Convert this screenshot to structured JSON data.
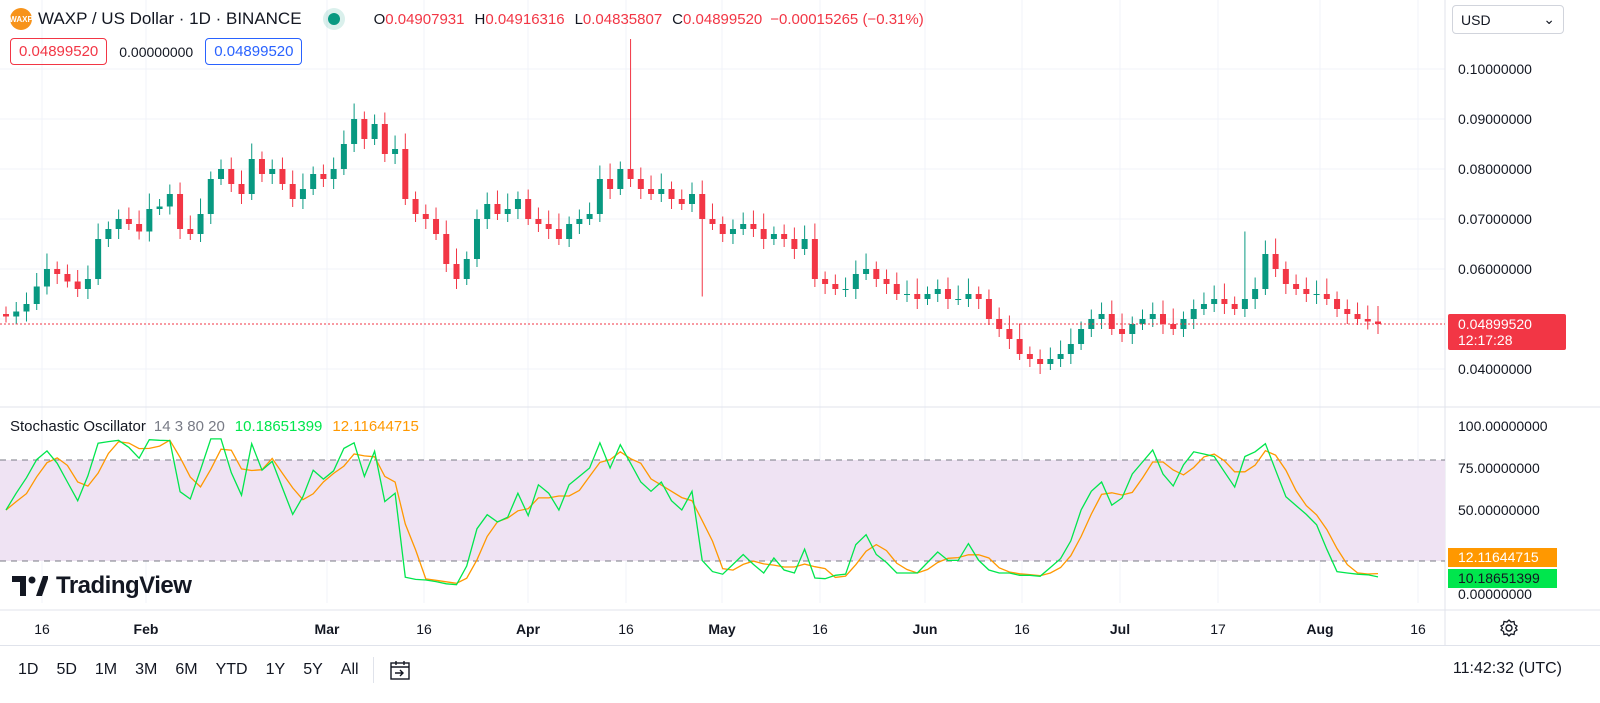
{
  "symbol": {
    "logo_text": "WAXP",
    "title": "WAXP / US Dollar · 1D · BINANCE",
    "ohlc": {
      "o_label": "O",
      "o": "0.04907931",
      "h_label": "H",
      "h": "0.04916316",
      "l_label": "L",
      "l": "0.04835807",
      "c_label": "C",
      "c": "0.04899520",
      "change": "−0.00015265 (−0.31%)"
    }
  },
  "pills": {
    "sell": "0.04899520",
    "spread": "0.00000000",
    "buy": "0.04899520"
  },
  "currency": {
    "value": "USD",
    "chevron": "⌄"
  },
  "price_axis": {
    "ticks": [
      "0.10000000",
      "0.09000000",
      "0.08000000",
      "0.07000000",
      "0.06000000",
      "0.04000000"
    ],
    "tick_values": [
      0.1,
      0.09,
      0.08,
      0.07,
      0.06,
      0.04
    ],
    "last_price": "0.04899520",
    "countdown": "12:17:28"
  },
  "stoch": {
    "name": "Stochastic Oscillator",
    "params": "14 3 80 20",
    "k": "10.18651399",
    "d": "12.11644715",
    "axis_ticks": [
      "100.00000000",
      "75.00000000",
      "50.00000000",
      "0.00000000"
    ],
    "axis_values": [
      100,
      75,
      50,
      0
    ]
  },
  "time_axis": [
    "16",
    "Feb",
    "Mar",
    "16",
    "Apr",
    "16",
    "May",
    "16",
    "Jun",
    "16",
    "Jul",
    "17",
    "Aug",
    "16"
  ],
  "branding": "TradingView",
  "ranges": [
    "1D",
    "5D",
    "1M",
    "3M",
    "6M",
    "YTD",
    "1Y",
    "5Y",
    "All"
  ],
  "clock": "11:42:32 (UTC)",
  "colors": {
    "up": "#089981",
    "down": "#f23645",
    "k_line": "#00e64d",
    "d_line": "#ff9800",
    "band": "#efe3f3"
  },
  "chart_data": {
    "type": "candlestick",
    "series_name": "WAXP / US Dollar",
    "close_approx": [
      0.0505,
      0.0515,
      0.053,
      0.0565,
      0.06,
      0.059,
      0.0575,
      0.056,
      0.058,
      0.066,
      0.068,
      0.07,
      0.069,
      0.0675,
      0.072,
      0.0725,
      0.075,
      0.068,
      0.067,
      0.071,
      0.078,
      0.08,
      0.077,
      0.075,
      0.082,
      0.079,
      0.08,
      0.077,
      0.074,
      0.076,
      0.079,
      0.078,
      0.08,
      0.085,
      0.09,
      0.086,
      0.089,
      0.083,
      0.084,
      0.074,
      0.071,
      0.07,
      0.067,
      0.061,
      0.058,
      0.062,
      0.07,
      0.073,
      0.071,
      0.072,
      0.074,
      0.07,
      0.069,
      0.068,
      0.066,
      0.069,
      0.07,
      0.071,
      0.078,
      0.076,
      0.08,
      0.078,
      0.076,
      0.075,
      0.076,
      0.074,
      0.073,
      0.075,
      0.07,
      0.069,
      0.067,
      0.068,
      0.069,
      0.068,
      0.066,
      0.067,
      0.066,
      0.064,
      0.066,
      0.058,
      0.057,
      0.056,
      0.056,
      0.059,
      0.06,
      0.058,
      0.057,
      0.055,
      0.055,
      0.054,
      0.055,
      0.056,
      0.054,
      0.054,
      0.055,
      0.054,
      0.05,
      0.048,
      0.046,
      0.043,
      0.042,
      0.041,
      0.042,
      0.043,
      0.045,
      0.048,
      0.05,
      0.051,
      0.048,
      0.047,
      0.049,
      0.05,
      0.051,
      0.049,
      0.048,
      0.05,
      0.052,
      0.053,
      0.054,
      0.053,
      0.052,
      0.054,
      0.056,
      0.063,
      0.06,
      0.057,
      0.056,
      0.055,
      0.055,
      0.054,
      0.052,
      0.051,
      0.05,
      0.0495,
      0.049
    ]
  }
}
